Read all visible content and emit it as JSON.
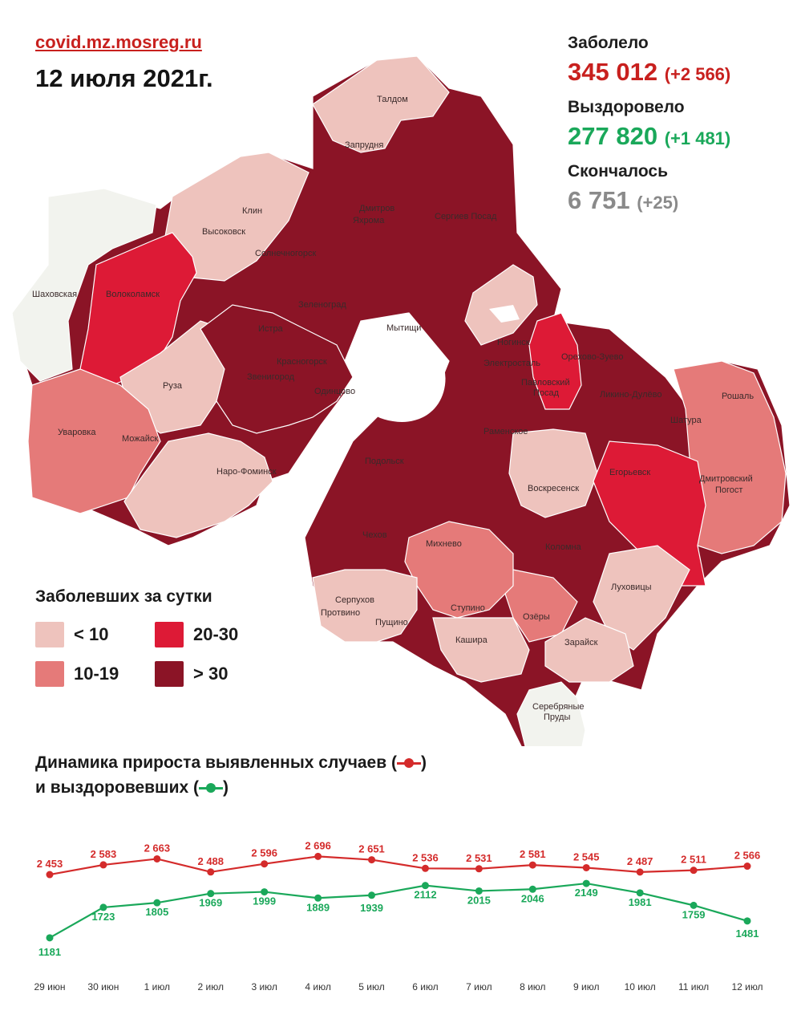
{
  "header": {
    "site": "covid.mz.mosreg.ru",
    "date": "12 июля 2021г."
  },
  "stats": {
    "cases": {
      "label": "Заболело",
      "value": "345 012",
      "delta": "(+2 566)",
      "color": "#c8201e"
    },
    "recovered": {
      "label": "Выздоровело",
      "value": "277 820",
      "delta": "(+1 481)",
      "color": "#1aa85a"
    },
    "deaths": {
      "label": "Скончалось",
      "value": "6 751",
      "delta": "(+25)",
      "color": "#8a8a8a"
    }
  },
  "legend": {
    "title": "Заболевших за сутки",
    "items": [
      {
        "label": "< 10",
        "color": "#eec3bd"
      },
      {
        "label": "20-30",
        "color": "#dd1a36"
      },
      {
        "label": "10-19",
        "color": "#e57a79"
      },
      {
        "label": "> 30",
        "color": "#8b1426"
      }
    ]
  },
  "map": {
    "colors": {
      "white": "#f2f3ee",
      "light": "#eec3bd",
      "mid": "#e57a79",
      "bright": "#dd1a36",
      "dark": "#8b1426"
    },
    "labels": [
      "Талдом",
      "Запрудня",
      "Клин",
      "Высоковск",
      "Дмитров",
      "Яхрома",
      "Сергиев Посад",
      "Солнечногорск",
      "Шаховская",
      "Волоколамск",
      "Зеленоград",
      "Истра",
      "Мытищи",
      "Ногинск",
      "Электросталь",
      "Орехово-Зуево",
      "Павловский Посад",
      "Ликино-Дулёво",
      "Красногорск",
      "Звенигород",
      "Одинцово",
      "Руза",
      "Рошаль",
      "Шатура",
      "Уваровка",
      "Можайск",
      "Наро-Фоминск",
      "Раменское",
      "Подольск",
      "Воскресенск",
      "Егорьевск",
      "Дмитровский Погост",
      "Чехов",
      "Михнево",
      "Коломна",
      "Серпухов",
      "Протвино",
      "Пущино",
      "Ступино",
      "Озёры",
      "Луховицы",
      "Кашира",
      "Зарайск",
      "Серебряные Пруды"
    ]
  },
  "chart_title": {
    "line1": "Динамика прироста выявленных случаев (",
    "line1_end": ")",
    "line2": "и выздоровевших (",
    "line2_end": ")"
  },
  "chart_data": {
    "type": "line",
    "categories": [
      "29 июн",
      "30 июн",
      "1 июл",
      "2 июл",
      "3 июл",
      "4 июл",
      "5 июл",
      "6 июл",
      "7 июл",
      "8 июл",
      "9 июл",
      "10 июл",
      "11 июл",
      "12 июл"
    ],
    "series": [
      {
        "color": "#d42b2b",
        "values": [
          2453,
          2583,
          2663,
          2488,
          2596,
          2696,
          2651,
          2536,
          2531,
          2581,
          2545,
          2487,
          2511,
          2566
        ],
        "labels": [
          "2 453",
          "2 583",
          "2 663",
          "2 488",
          "2 596",
          "2 696",
          "2 651",
          "2 536",
          "2 531",
          "2 581",
          "2 545",
          "2 487",
          "2 511",
          "2 566"
        ]
      },
      {
        "color": "#1aa85a",
        "values": [
          1181,
          1723,
          1805,
          1969,
          1999,
          1889,
          1939,
          2112,
          2015,
          2046,
          2149,
          1981,
          1759,
          1481
        ],
        "labels": [
          "1181",
          "1723",
          "1805",
          "1969",
          "1999",
          "1889",
          "1939",
          "2112",
          "2015",
          "2046",
          "2149",
          "1981",
          "1759",
          "1481"
        ]
      }
    ]
  }
}
